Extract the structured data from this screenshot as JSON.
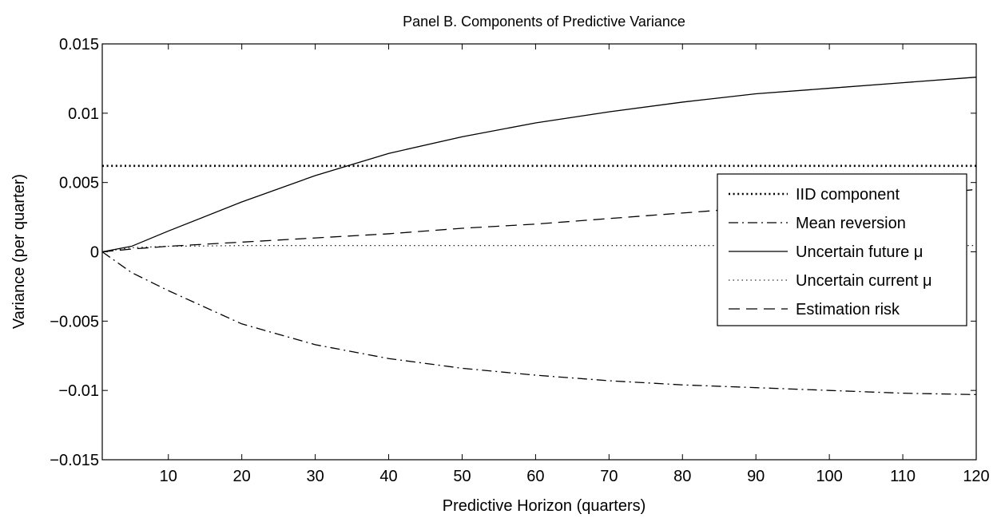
{
  "chart_data": {
    "type": "line",
    "title": "Panel B.  Components of Predictive Variance",
    "xlabel": "Predictive Horizon (quarters)",
    "ylabel": "Variance (per quarter)",
    "xlim": [
      1,
      120
    ],
    "ylim": [
      -0.015,
      0.015
    ],
    "xticks": [
      10,
      20,
      30,
      40,
      50,
      60,
      70,
      80,
      90,
      100,
      110,
      120
    ],
    "xtick_labels": [
      "10",
      "20",
      "30",
      "40",
      "50",
      "60",
      "70",
      "80",
      "90",
      "100",
      "110",
      "120"
    ],
    "yticks": [
      -0.015,
      -0.01,
      -0.005,
      0,
      0.005,
      0.01,
      0.015
    ],
    "ytick_labels": [
      "−0.015",
      "−0.01",
      "−0.005",
      "0",
      "0.005",
      "0.01",
      "0.015"
    ],
    "grid": false,
    "legend_position": "right",
    "x": [
      1,
      5,
      10,
      20,
      30,
      40,
      50,
      60,
      70,
      80,
      90,
      100,
      110,
      120
    ],
    "series": [
      {
        "name": "IID component",
        "style": "dotted-thick",
        "values": [
          0.0062,
          0.0062,
          0.0062,
          0.0062,
          0.0062,
          0.0062,
          0.0062,
          0.0062,
          0.0062,
          0.0062,
          0.0062,
          0.0062,
          0.0062,
          0.0062
        ]
      },
      {
        "name": "Mean reversion",
        "style": "dashdot",
        "values": [
          0.0,
          -0.0015,
          -0.0028,
          -0.0052,
          -0.0067,
          -0.0077,
          -0.0084,
          -0.0089,
          -0.0093,
          -0.0096,
          -0.0098,
          -0.01,
          -0.0102,
          -0.0103
        ]
      },
      {
        "name": "Uncertain future μ",
        "style": "solid",
        "values": [
          0.0,
          0.0004,
          0.0015,
          0.0036,
          0.0055,
          0.0071,
          0.0083,
          0.0093,
          0.0101,
          0.0108,
          0.0114,
          0.0118,
          0.0122,
          0.0126
        ]
      },
      {
        "name": "Uncertain current μ",
        "style": "dotted-thin",
        "values": [
          0.0,
          0.0003,
          0.0004,
          0.00045,
          0.00045,
          0.00045,
          0.00045,
          0.00045,
          0.00045,
          0.00045,
          0.00045,
          0.00045,
          0.00045,
          0.00045
        ]
      },
      {
        "name": "Estimation risk",
        "style": "dashed",
        "values": [
          0.0,
          0.0002,
          0.0004,
          0.0007,
          0.001,
          0.0013,
          0.0017,
          0.002,
          0.0024,
          0.0028,
          0.0032,
          0.0036,
          0.004,
          0.0045
        ]
      }
    ]
  }
}
